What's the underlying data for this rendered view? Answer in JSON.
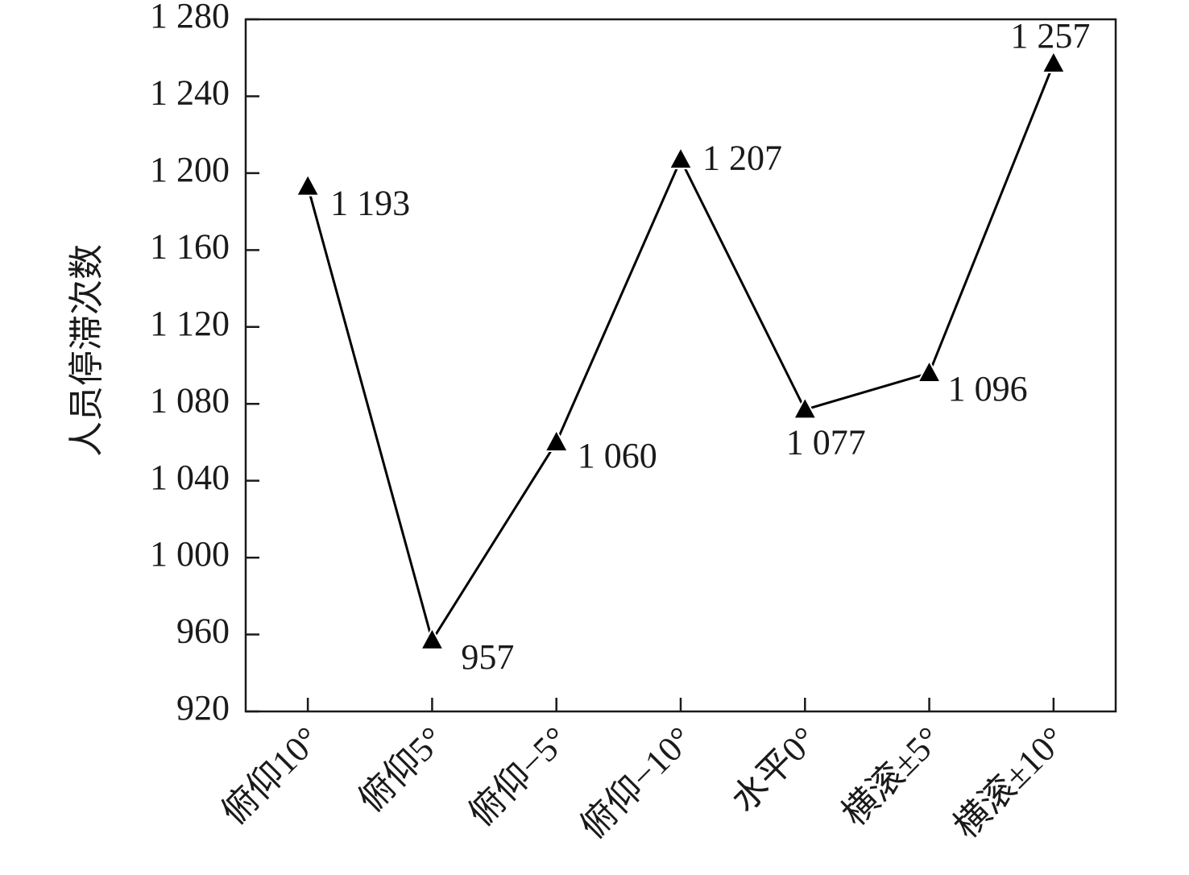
{
  "chart_data": {
    "type": "line",
    "y_label": "人员停滞次数",
    "categories": [
      "俯仰10°",
      "俯仰5°",
      "俯仰−5°",
      "俯仰−10°",
      "水平0°",
      "横滚±5°",
      "横滚±10°"
    ],
    "values": [
      1193,
      957,
      1060,
      1207,
      1077,
      1096,
      1257
    ],
    "value_labels": [
      "1 193",
      "957",
      "1 060",
      "1 207",
      "1 077",
      "1 096",
      "1 257"
    ],
    "color": "#000000",
    "ylim": [
      920,
      1280
    ],
    "yticks": [
      920,
      960,
      {
        "value": 1000,
        "label": "1 000"
      },
      {
        "value": 1040,
        "label": "1 040"
      },
      {
        "value": 1080,
        "label": "1 080"
      },
      {
        "value": 1120,
        "label": "1 120"
      },
      {
        "value": 1160,
        "label": "1 160"
      },
      {
        "value": 1200,
        "label": "1 200"
      },
      {
        "value": 1240,
        "label": "1 240"
      },
      {
        "value": 1280,
        "label": "1 280"
      }
    ],
    "grid": false
  }
}
